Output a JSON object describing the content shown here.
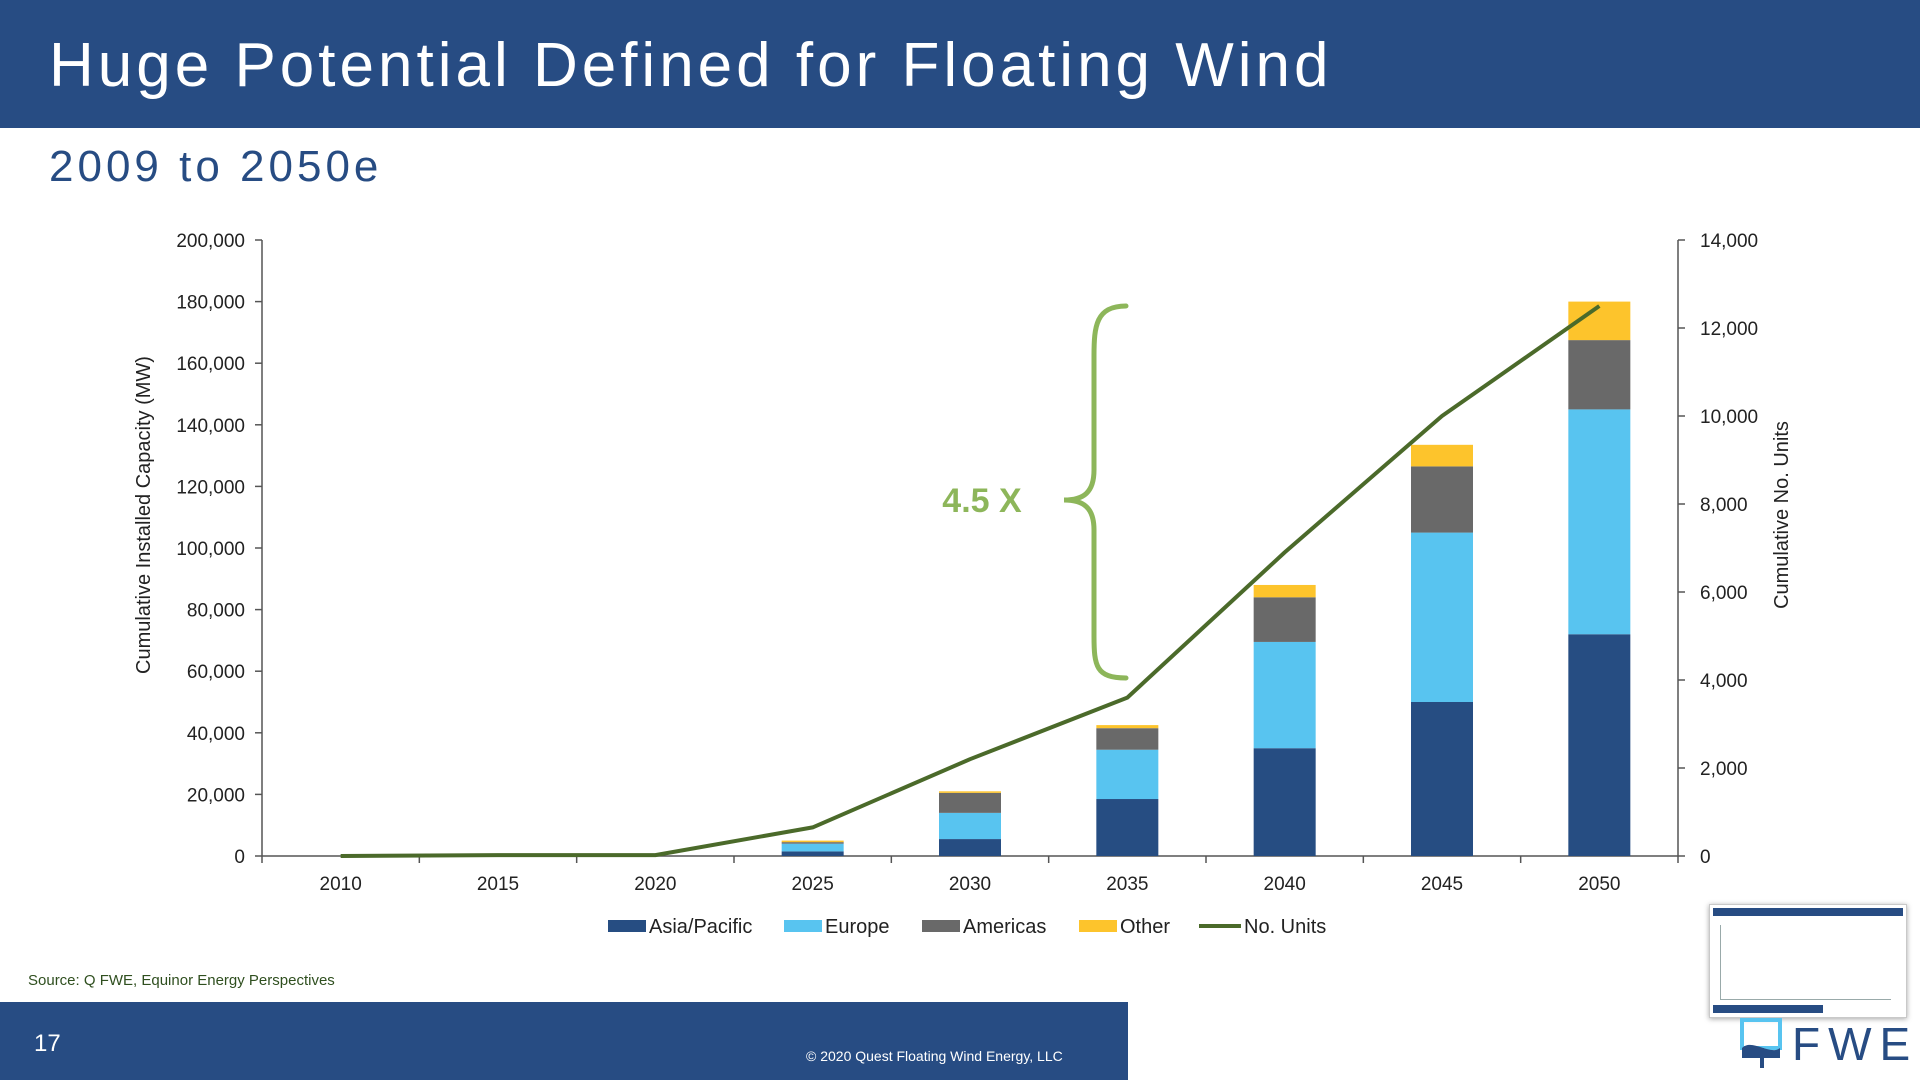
{
  "slide": {
    "title": "Huge Potential Defined for Floating Wind",
    "subtitle": "2009 to 2050e",
    "source": "Source: Q FWE, Equinor Energy Perspectives",
    "page_number": "17",
    "copyright": "© 2020 Quest Floating Wind Energy, LLC",
    "logo_text": "FWE"
  },
  "colors": {
    "header": "#274c83",
    "asia_pacific": "#264d82",
    "europe": "#58c4f0",
    "americas": "#696969",
    "other": "#fdc42c",
    "units_line": "#4b6a2a",
    "annotation": "#8db65a"
  },
  "annotation": {
    "label": "4.5 X"
  },
  "chart_data": {
    "type": "bar",
    "stacked": true,
    "categories": [
      "2010",
      "2015",
      "2020",
      "2025",
      "2030",
      "2035",
      "2040",
      "2045",
      "2050"
    ],
    "series": [
      {
        "name": "Asia/Pacific",
        "values": [
          0,
          0,
          0,
          1500,
          5500,
          18500,
          35000,
          50000,
          72000
        ]
      },
      {
        "name": "Europe",
        "values": [
          0,
          0,
          0,
          2500,
          8500,
          16000,
          34500,
          55000,
          73000
        ]
      },
      {
        "name": "Americas",
        "values": [
          0,
          0,
          0,
          500,
          6500,
          7000,
          14500,
          21500,
          22500
        ]
      },
      {
        "name": "Other",
        "values": [
          0,
          0,
          0,
          500,
          500,
          1000,
          4000,
          7000,
          12500
        ]
      }
    ],
    "line_series": {
      "name": "No. Units",
      "values": [
        0,
        20,
        20,
        650,
        2200,
        3600,
        6900,
        10000,
        12500
      ]
    },
    "ylabel": "Cumulative Installed Capacity (MW)",
    "y2label": "Cumulative No. Units",
    "ylim": [
      0,
      200000
    ],
    "y2lim": [
      0,
      14000
    ],
    "yticks": [
      "0",
      "20,000",
      "40,000",
      "60,000",
      "80,000",
      "100,000",
      "120,000",
      "140,000",
      "160,000",
      "180,000",
      "200,000"
    ],
    "y2ticks": [
      "0",
      "2,000",
      "4,000",
      "6,000",
      "8,000",
      "10,000",
      "12,000",
      "14,000"
    ],
    "legend": [
      "Asia/Pacific",
      "Europe",
      "Americas",
      "Other",
      "No. Units"
    ],
    "legend_position": "bottom",
    "grid": false
  }
}
